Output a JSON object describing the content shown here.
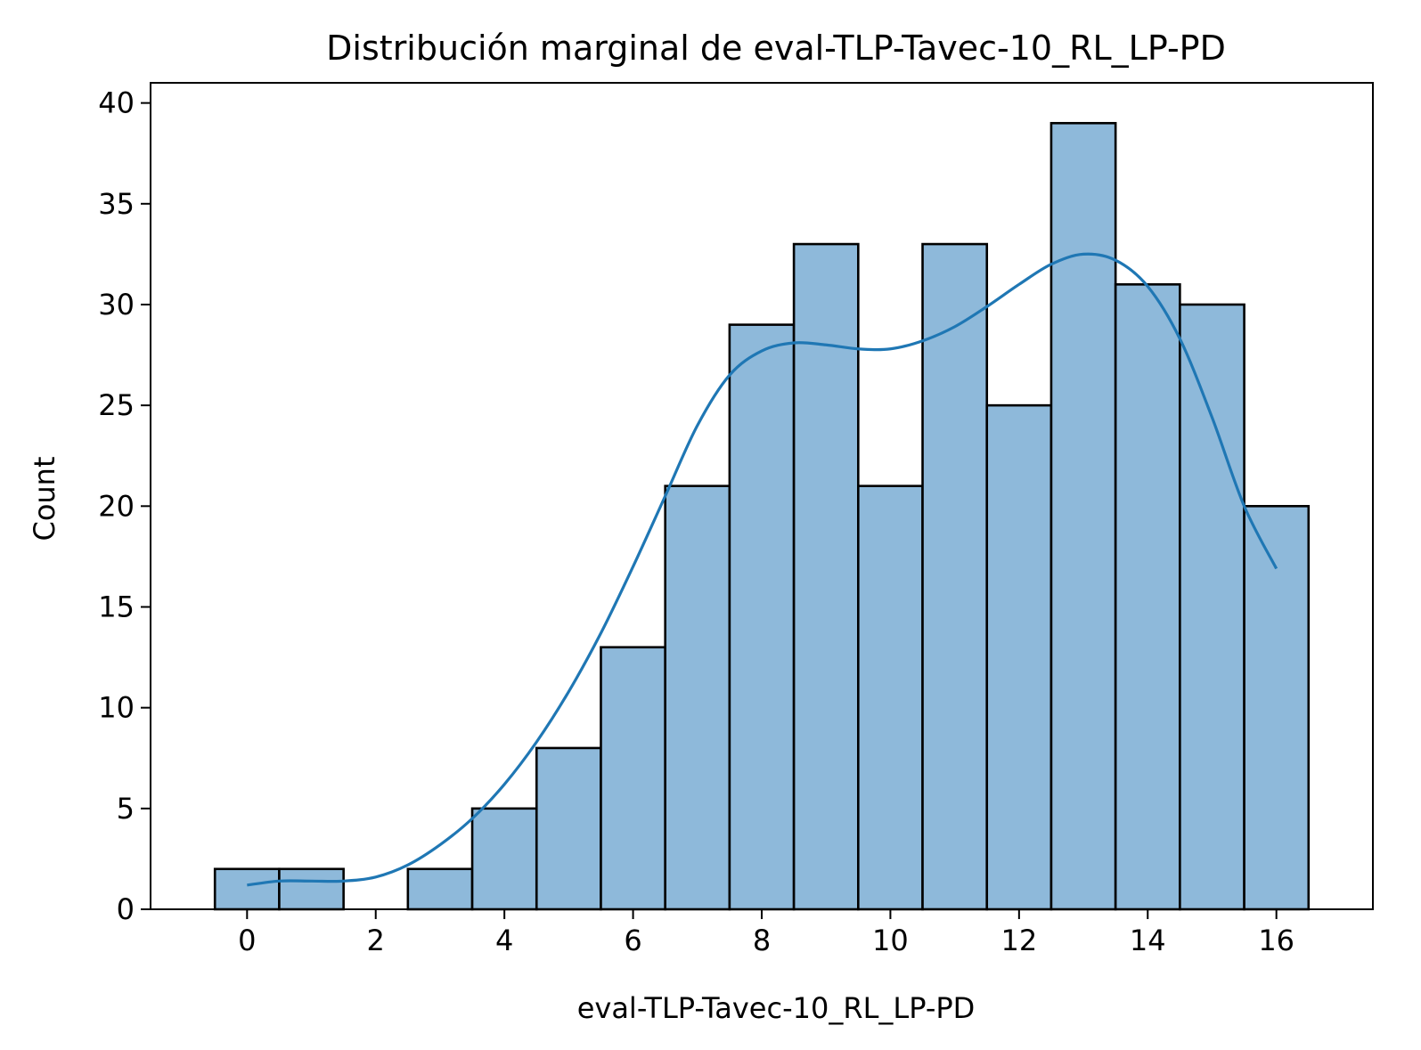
{
  "chart_data": {
    "type": "bar",
    "title": "Distribución marginal de eval-TLP-Tavec-10_RL_LP-PD",
    "xlabel": "eval-TLP-Tavec-10_RL_LP-PD",
    "ylabel": "Count",
    "xlim": [
      -1.5,
      17.5
    ],
    "ylim": [
      0,
      41
    ],
    "xticks": [
      0,
      2,
      4,
      6,
      8,
      10,
      12,
      14,
      16
    ],
    "yticks": [
      0,
      5,
      10,
      15,
      20,
      25,
      30,
      35,
      40
    ],
    "grid": false,
    "bins": [
      {
        "x": 0,
        "count": 2
      },
      {
        "x": 1,
        "count": 2
      },
      {
        "x": 2,
        "count": 0
      },
      {
        "x": 3,
        "count": 2
      },
      {
        "x": 4,
        "count": 5
      },
      {
        "x": 5,
        "count": 8
      },
      {
        "x": 6,
        "count": 13
      },
      {
        "x": 7,
        "count": 21
      },
      {
        "x": 8,
        "count": 29
      },
      {
        "x": 9,
        "count": 33
      },
      {
        "x": 10,
        "count": 21
      },
      {
        "x": 11,
        "count": 33
      },
      {
        "x": 12,
        "count": 25
      },
      {
        "x": 13,
        "count": 39
      },
      {
        "x": 14,
        "count": 31
      },
      {
        "x": 15,
        "count": 30
      },
      {
        "x": 16,
        "count": 20
      }
    ],
    "bin_width": 1,
    "kde": {
      "x": [
        0,
        0.5,
        1,
        1.5,
        2,
        2.5,
        3,
        3.5,
        4,
        4.5,
        5,
        5.5,
        6,
        6.5,
        7,
        7.5,
        8,
        8.5,
        9,
        9.5,
        10,
        10.5,
        11,
        11.5,
        12,
        12.5,
        13,
        13.5,
        14,
        14.5,
        15,
        15.5,
        16
      ],
      "y": [
        1.2,
        1.4,
        1.4,
        1.4,
        1.6,
        2.2,
        3.2,
        4.5,
        6.2,
        8.3,
        10.8,
        13.7,
        17.0,
        20.5,
        24.0,
        26.5,
        27.7,
        28.1,
        28.0,
        27.8,
        27.8,
        28.2,
        28.9,
        29.9,
        31.0,
        32.0,
        32.5,
        32.2,
        30.9,
        28.3,
        24.4,
        20.0,
        16.9
      ]
    },
    "colors": {
      "bar_fill": "#8eb9da",
      "bar_edge": "#000000",
      "kde_line": "#1f77b4"
    }
  }
}
